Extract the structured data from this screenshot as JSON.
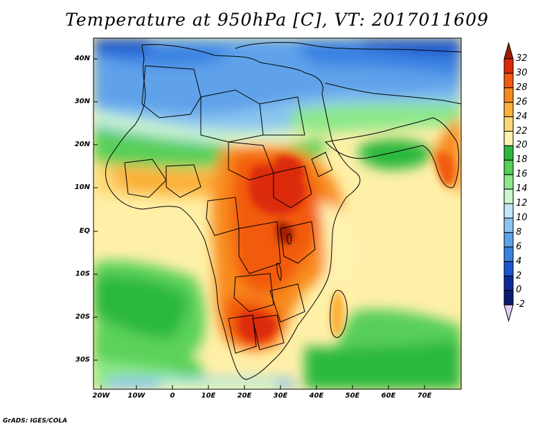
{
  "title": "Temperature at 950hPa [C], VT: 2017011609",
  "map": {
    "variable": "Temperature",
    "level": "950hPa",
    "units": "C",
    "valid_time": "2017011609"
  },
  "axes": {
    "lat_labels": [
      "40N",
      "30N",
      "20N",
      "10N",
      "EQ",
      "10S",
      "20S",
      "30S"
    ],
    "lon_labels": [
      "20W",
      "10W",
      "0",
      "10E",
      "20E",
      "30E",
      "40E",
      "50E",
      "60E",
      "70E"
    ]
  },
  "colorbar": {
    "labels": [
      "32",
      "30",
      "28",
      "26",
      "24",
      "22",
      "20",
      "18",
      "16",
      "14",
      "12",
      "10",
      "8",
      "6",
      "4",
      "2",
      "0",
      "-2"
    ],
    "colors": [
      "#a01a00",
      "#dc2a08",
      "#f25a10",
      "#f88a1c",
      "#fbb038",
      "#fdd876",
      "#fff2b0",
      "#2bb83e",
      "#58cf58",
      "#8ce88a",
      "#ccf7ce",
      "#c2e6f8",
      "#8ac4ef",
      "#5ea2ea",
      "#3a82e2",
      "#1c56cc",
      "#0c2a9a",
      "#0a1a6e",
      "#e0ccf2"
    ]
  },
  "footer": "GrADS: IGES/COLA"
}
